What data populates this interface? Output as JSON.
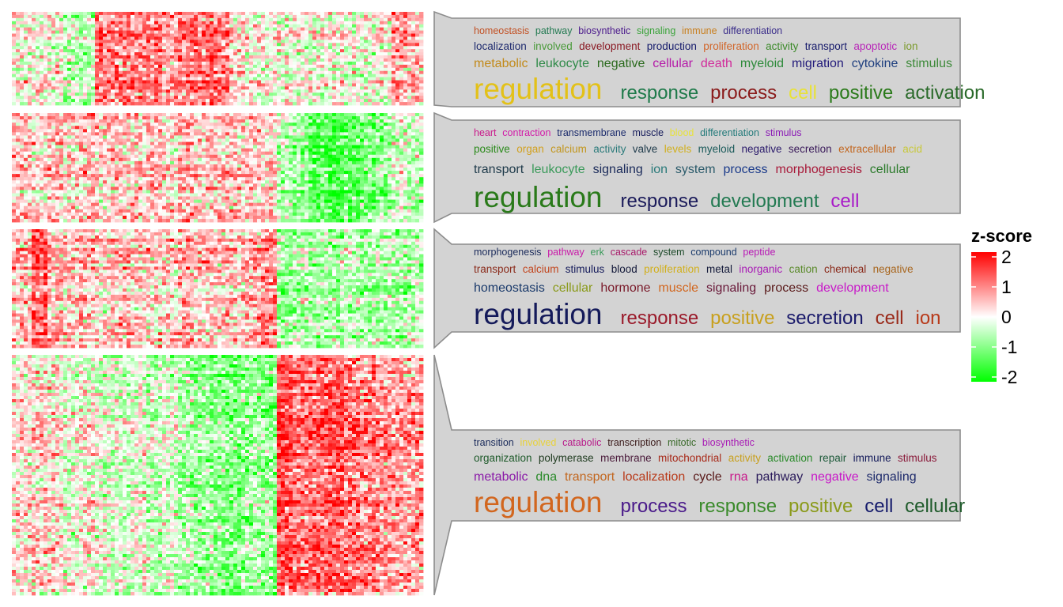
{
  "chart_data": {
    "type": "heatmap",
    "clusters": [
      {
        "name": "cluster-1",
        "pattern": [
          0.1,
          0.1,
          0.1,
          -0.3,
          -0.3,
          0.9,
          0.9,
          0.8,
          0.9,
          0.6,
          0.9,
          0.9,
          0.9,
          0.3,
          0.1,
          0.1,
          0.1,
          0.0,
          0.0,
          0.2,
          0.0,
          0.0,
          0.2,
          0.7,
          0.5
        ],
        "word_rows": [
          [
            [
              "homeostasis",
              "#c25124"
            ],
            [
              "pathway",
              "#237a52"
            ],
            [
              "biosynthetic",
              "#4b1a8c"
            ],
            [
              "signaling",
              "#3aa33a"
            ],
            [
              "immune",
              "#c97f1e"
            ],
            [
              "differentiation",
              "#3a2d8a"
            ]
          ],
          [
            [
              "localization",
              "#1e2a6e"
            ],
            [
              "involved",
              "#4a9a3a"
            ],
            [
              "development",
              "#8a1a24"
            ],
            [
              "production",
              "#141a6b"
            ],
            [
              "proliferation",
              "#d2662a"
            ],
            [
              "activity",
              "#3c8a2a"
            ],
            [
              "transport",
              "#161a6b"
            ],
            [
              "apoptotic",
              "#b827b8"
            ],
            [
              "ion",
              "#7a9a2a"
            ]
          ],
          [
            [
              "metabolic",
              "#c28a1a"
            ],
            [
              "leukocyte",
              "#2f8a48"
            ],
            [
              "negative",
              "#2b6a1e"
            ],
            [
              "cellular",
              "#b51aa8"
            ],
            [
              "death",
              "#d12a9a"
            ],
            [
              "myeloid",
              "#2d8a3a"
            ],
            [
              "migration",
              "#221a7a"
            ],
            [
              "cytokine",
              "#1f3f7f"
            ],
            [
              "stimulus",
              "#3e8a3a"
            ]
          ],
          [
            [
              "regulation",
              "#e3c118"
            ],
            [
              "response",
              "#1e7a4a"
            ],
            [
              "process",
              "#8a1a1a"
            ],
            [
              "cell",
              "#e8e23a"
            ],
            [
              "positive",
              "#2a7a1a"
            ],
            [
              "activation",
              "#2a6a2a"
            ]
          ]
        ]
      },
      {
        "name": "cluster-2",
        "pattern": [
          0.5,
          0.3,
          0.5,
          0.3,
          0.5,
          0.3,
          0.4,
          0.3,
          0.5,
          0.3,
          0.5,
          0.4,
          0.4,
          0.4,
          0.4,
          0.4,
          -0.3,
          -0.6,
          -0.9,
          -1.1,
          -0.9,
          -0.7,
          -0.6,
          -0.2,
          -0.3
        ],
        "word_rows": [
          [
            [
              "heart",
              "#c9188a"
            ],
            [
              "contraction",
              "#d21aa8"
            ],
            [
              "transmembrane",
              "#1a2a6b"
            ],
            [
              "muscle",
              "#141a5a"
            ],
            [
              "blood",
              "#e8e23a"
            ],
            [
              "differentiation",
              "#237a7a"
            ],
            [
              "stimulus",
              "#8a1ab5"
            ]
          ],
          [
            [
              "positive",
              "#2a8a1a"
            ],
            [
              "organ",
              "#d2a01e"
            ],
            [
              "calcium",
              "#c2961e"
            ],
            [
              "activity",
              "#2a7a7a"
            ],
            [
              "valve",
              "#1e3a4a"
            ],
            [
              "levels",
              "#d2b01e"
            ],
            [
              "myeloid",
              "#1a5a5a"
            ],
            [
              "negative",
              "#2a1a6b"
            ],
            [
              "secretion",
              "#3a1a5a"
            ],
            [
              "extracellular",
              "#c2661e"
            ],
            [
              "acid",
              "#c8c83a"
            ]
          ],
          [
            [
              "transport",
              "#1e3a4a"
            ],
            [
              "leukocyte",
              "#3a9a5a"
            ],
            [
              "signaling",
              "#1a2a5a"
            ],
            [
              "ion",
              "#2a7a7a"
            ],
            [
              "system",
              "#2a5a6a"
            ],
            [
              "process",
              "#1a3a8a"
            ],
            [
              "morphogenesis",
              "#a81a3a"
            ],
            [
              "cellular",
              "#2a7a2a"
            ]
          ],
          [
            [
              "regulation",
              "#2a7a1a"
            ],
            [
              "response",
              "#1a1a5a"
            ],
            [
              "development",
              "#237a52"
            ],
            [
              "cell",
              "#a81ac8"
            ]
          ]
        ]
      },
      {
        "name": "cluster-3",
        "pattern": [
          0.4,
          1.1,
          0.5,
          0.3,
          0.4,
          0.3,
          0.5,
          0.4,
          0.3,
          0.3,
          0.5,
          0.3,
          0.4,
          0.3,
          0.5,
          0.8,
          -0.6,
          -0.4,
          -0.5,
          -0.5,
          -0.3,
          -0.5,
          -0.4,
          -0.5,
          -0.3
        ],
        "word_rows": [
          [
            [
              "morphogenesis",
              "#1a2a5a"
            ],
            [
              "pathway",
              "#c91aa8"
            ],
            [
              "erk",
              "#3a9a5a"
            ],
            [
              "cascade",
              "#a81a6a"
            ],
            [
              "system",
              "#1e4a2a"
            ],
            [
              "compound",
              "#1a3a6b"
            ],
            [
              "peptide",
              "#b81ab5"
            ]
          ],
          [
            [
              "transport",
              "#8a2a1a"
            ],
            [
              "calcium",
              "#c2461e"
            ],
            [
              "stimulus",
              "#141a5a"
            ],
            [
              "blood",
              "#141a3a"
            ],
            [
              "proliferation",
              "#d2b01e"
            ],
            [
              "metal",
              "#141a3a"
            ],
            [
              "inorganic",
              "#a81ab5"
            ],
            [
              "cation",
              "#5a8a2a"
            ],
            [
              "chemical",
              "#8a2a1a"
            ],
            [
              "negative",
              "#a8661e"
            ]
          ],
          [
            [
              "homeostasis",
              "#1a3a6b"
            ],
            [
              "cellular",
              "#8a9a1a"
            ],
            [
              "hormone",
              "#7a1a2a"
            ],
            [
              "muscle",
              "#d2661e"
            ],
            [
              "signaling",
              "#6a1a3a"
            ],
            [
              "process",
              "#5a1a1a"
            ],
            [
              "development",
              "#c81ac8"
            ]
          ],
          [
            [
              "regulation",
              "#141a5a"
            ],
            [
              "response",
              "#9a1a2a"
            ],
            [
              "positive",
              "#c8a01e"
            ],
            [
              "secretion",
              "#1a1a6b"
            ],
            [
              "cell",
              "#9a2a1a"
            ],
            [
              "ion",
              "#b83a1a"
            ]
          ]
        ]
      },
      {
        "name": "cluster-4",
        "pattern": [
          0.2,
          0.3,
          0.2,
          -0.1,
          0.1,
          -0.1,
          -0.2,
          0.0,
          -0.3,
          -0.2,
          -0.4,
          -0.5,
          -0.6,
          -0.7,
          -0.5,
          -0.6,
          1.2,
          0.9,
          1.0,
          1.1,
          0.9,
          0.8,
          0.7,
          0.6,
          0.6
        ],
        "word_rows": [
          [
            [
              "transition",
              "#1a2a5a"
            ],
            [
              "involved",
              "#e8d23a"
            ],
            [
              "catabolic",
              "#b81a8a"
            ],
            [
              "transcription",
              "#3a1a1a"
            ],
            [
              "mitotic",
              "#3a6a2a"
            ],
            [
              "biosynthetic",
              "#a81ab5"
            ]
          ],
          [
            [
              "organization",
              "#1e5a2a"
            ],
            [
              "polymerase",
              "#1e3a1e"
            ],
            [
              "membrane",
              "#4a1a3a"
            ],
            [
              "mitochondrial",
              "#a82a1a"
            ],
            [
              "activity",
              "#c8a01e"
            ],
            [
              "activation",
              "#2a8a2a"
            ],
            [
              "repair",
              "#1e5a3a"
            ],
            [
              "immune",
              "#141a5a"
            ],
            [
              "stimulus",
              "#8a1a3a"
            ]
          ],
          [
            [
              "metabolic",
              "#8a1aa8"
            ],
            [
              "dna",
              "#2a8a2a"
            ],
            [
              "transport",
              "#c2661e"
            ],
            [
              "localization",
              "#b83a1a"
            ],
            [
              "cycle",
              "#5a1a1a"
            ],
            [
              "rna",
              "#c8188a"
            ],
            [
              "pathway",
              "#2a1a5a"
            ],
            [
              "negative",
              "#c818c8"
            ],
            [
              "signaling",
              "#1e2a6b"
            ]
          ],
          [
            [
              "regulation",
              "#d2661e"
            ],
            [
              "process",
              "#4a1a8a"
            ],
            [
              "response",
              "#3a8a2a"
            ],
            [
              "positive",
              "#8a9a1a"
            ],
            [
              "cell",
              "#141a6b"
            ],
            [
              "cellular",
              "#1e5a2a"
            ]
          ]
        ]
      }
    ],
    "legend": {
      "title": "z-score",
      "ticks": [
        "2",
        "1",
        "0",
        "-1",
        "-2"
      ],
      "range": [
        -2,
        2
      ],
      "colors": {
        "low": "#00ff00",
        "mid": "#ffffff",
        "high": "#ff0000"
      }
    }
  }
}
